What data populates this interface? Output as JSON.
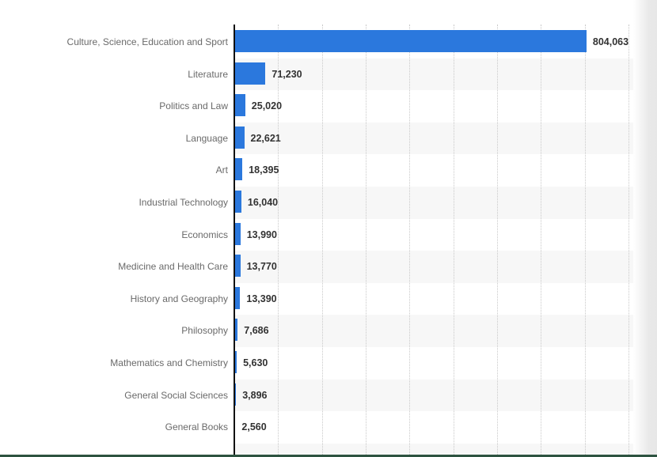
{
  "chart_data": {
    "type": "bar",
    "orientation": "horizontal",
    "title": "",
    "xlabel": "",
    "ylabel": "",
    "categories": [
      "Culture, Science, Education and Sport",
      "Literature",
      "Politics and Law",
      "Language",
      "Art",
      "Industrial Technology",
      "Economics",
      "Medicine and Health Care",
      "History and Geography",
      "Philosophy",
      "Mathematics and Chemistry",
      "General Social Sciences",
      "General Books"
    ],
    "values": [
      804063,
      71230,
      25020,
      22621,
      18395,
      16040,
      13990,
      13770,
      13390,
      7686,
      5630,
      3896,
      2560
    ],
    "value_labels": [
      "804,063",
      "71,230",
      "25,020",
      "22,621",
      "18,395",
      "16,040",
      "13,990",
      "13,770",
      "13,390",
      "7,686",
      "5,630",
      "3,896",
      "2,560"
    ],
    "xlim": [
      0,
      910000
    ],
    "gridline_interval": 100000,
    "grid": "vertical-dotted",
    "legend": "none",
    "row_stripes": "alternating"
  },
  "colors": {
    "bar": "#2b78dd",
    "stripe": "#f7f7f7",
    "gridline": "#c9c9c9",
    "axis": "#111111",
    "baseline": "#2d5340",
    "category_label": "#6a6a6a",
    "value_label": "#323232",
    "page_edge": "#e9e9e9"
  }
}
